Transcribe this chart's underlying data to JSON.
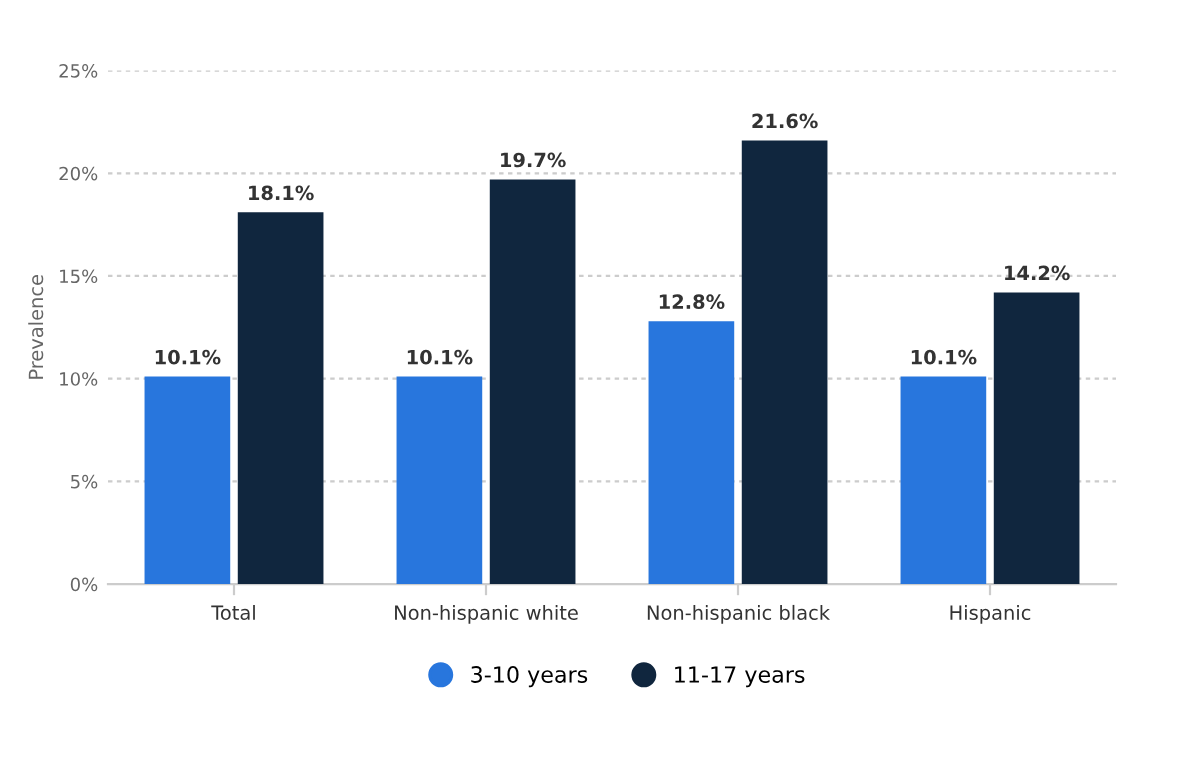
{
  "chart_data": {
    "type": "bar",
    "ylabel": "Prevalence",
    "categories": [
      "Total",
      "Non-hispanic white",
      "Non-hispanic black",
      "Hispanic"
    ],
    "series": [
      {
        "name": "3-10 years",
        "color": "#2876dd",
        "values": [
          10.1,
          10.1,
          12.8,
          10.1
        ],
        "value_labels": [
          "10.1%",
          "10.1%",
          "12.8%",
          "10.1%"
        ]
      },
      {
        "name": "11-17 years",
        "color": "#10263e",
        "values": [
          18.1,
          19.7,
          21.6,
          14.2
        ],
        "value_labels": [
          "18.1%",
          "19.7%",
          "21.6%",
          "14.2%"
        ]
      }
    ],
    "ylim": [
      0,
      25
    ],
    "yticks": [
      {
        "value": 0,
        "label": "0%"
      },
      {
        "value": 5,
        "label": "5%"
      },
      {
        "value": 10,
        "label": "10%"
      },
      {
        "value": 15,
        "label": "15%"
      },
      {
        "value": 20,
        "label": "20%"
      },
      {
        "value": 25,
        "label": "25%"
      }
    ],
    "grid": "y",
    "legend": "bottom"
  }
}
